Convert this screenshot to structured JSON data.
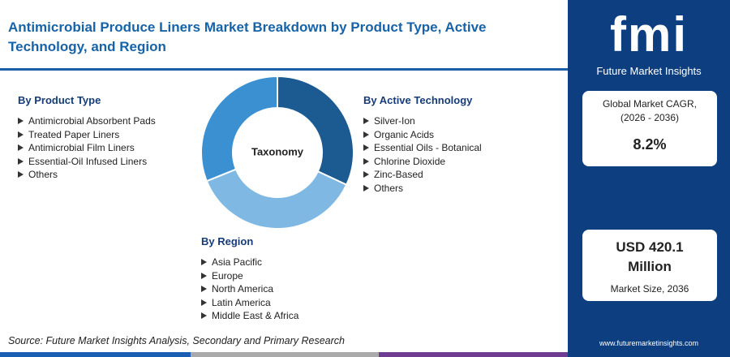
{
  "header": {
    "title": "Antimicrobial Produce Liners Market Breakdown by Product Type, Active Technology, and Region"
  },
  "center_label": "Taxonomy",
  "sections": [
    {
      "heading": "By Product Type",
      "items": [
        "Antimicrobial Absorbent Pads",
        "Treated Paper Liners",
        "Antimicrobial Film Liners",
        "Essential-Oil Infused Liners",
        "Others"
      ]
    },
    {
      "heading": "By Active Technology",
      "items": [
        "Silver-Ion",
        "Organic Acids",
        "Essential Oils - Botanical",
        "Chlorine Dioxide",
        "Zinc-Based",
        "Others"
      ]
    },
    {
      "heading": "By Region",
      "items": [
        "Asia Pacific",
        "Europe",
        "North America",
        "Latin America",
        "Middle East & Africa"
      ]
    }
  ],
  "source": "Source: Future Market Insights Analysis, Secondary and Primary Research",
  "sidebar": {
    "logo_mark": "fmi",
    "logo_name": "Future Market Insights",
    "cagr_label": "Global Market CAGR, (2026 - 2036)",
    "cagr_value": "8.2%",
    "size_value": "USD 420.1 Million",
    "size_label": "Market Size, 2036",
    "url": "www.futuremarketinsights.com"
  }
}
